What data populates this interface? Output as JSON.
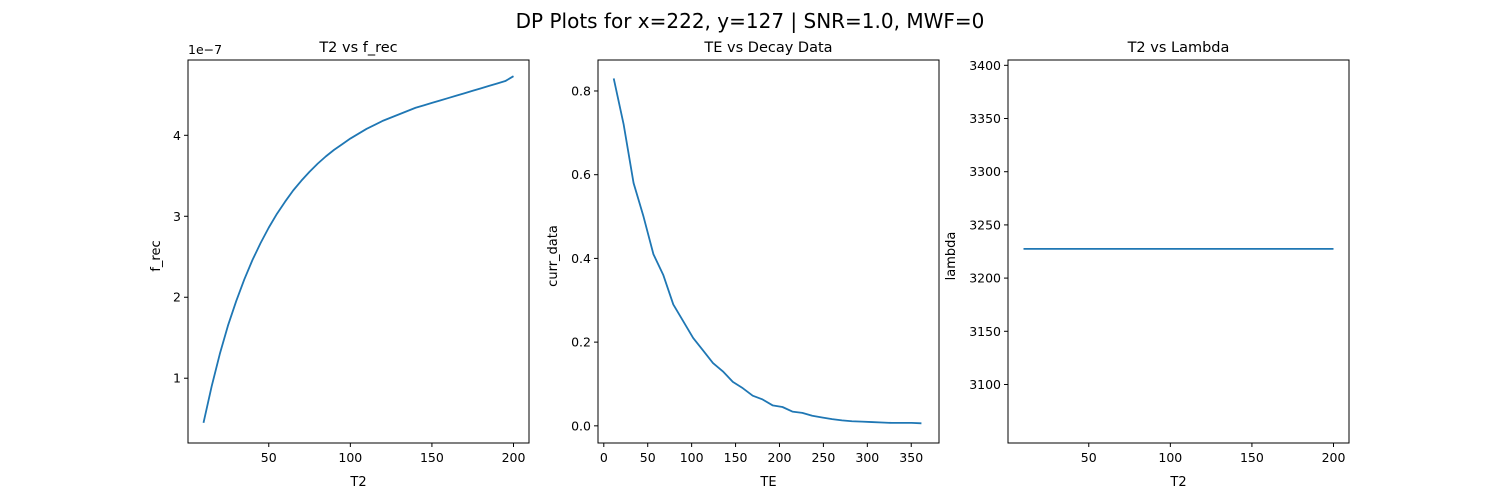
{
  "suptitle": "DP Plots for x=222, y=127 | SNR=1.0, MWF=0",
  "series_color": "#1f77b4",
  "chart_data": [
    {
      "type": "line",
      "title": "T2 vs f_rec",
      "xlabel": "T2",
      "ylabel": "f_rec",
      "y_offset_label": "1e−7",
      "xlim": [
        0.5,
        209.5
      ],
      "ylim": [
        0.2,
        4.93
      ],
      "y_scale_factor": 1e-07,
      "xticks": [
        50,
        100,
        150,
        200
      ],
      "yticks": [
        1,
        2,
        3,
        4
      ],
      "grid": false,
      "x": [
        10,
        15,
        20,
        25,
        30,
        35,
        40,
        45,
        50,
        55,
        60,
        65,
        70,
        75,
        80,
        85,
        90,
        95,
        100,
        105,
        110,
        115,
        120,
        125,
        130,
        135,
        140,
        145,
        150,
        155,
        160,
        165,
        170,
        175,
        180,
        185,
        190,
        195,
        200
      ],
      "y": [
        0.45,
        0.9,
        1.3,
        1.65,
        1.95,
        2.22,
        2.46,
        2.67,
        2.86,
        3.03,
        3.18,
        3.32,
        3.44,
        3.55,
        3.65,
        3.74,
        3.82,
        3.89,
        3.96,
        4.02,
        4.08,
        4.13,
        4.18,
        4.22,
        4.26,
        4.3,
        4.34,
        4.37,
        4.4,
        4.43,
        4.46,
        4.49,
        4.52,
        4.55,
        4.58,
        4.61,
        4.64,
        4.67,
        4.73
      ]
    },
    {
      "type": "line",
      "title": "TE vs Decay Data",
      "xlabel": "TE",
      "ylabel": "curr_data",
      "xlim": [
        -6.6,
        381.6
      ],
      "ylim": [
        -0.041,
        0.874
      ],
      "xticks": [
        0,
        50,
        100,
        150,
        200,
        250,
        300,
        350
      ],
      "yticks": [
        0.0,
        0.2,
        0.4,
        0.6,
        0.8
      ],
      "grid": false,
      "x": [
        11.3,
        22.6,
        33.9,
        45.2,
        56.5,
        67.8,
        79.1,
        90.4,
        101.7,
        113.0,
        124.3,
        135.6,
        146.9,
        158.2,
        169.5,
        180.8,
        192.1,
        203.4,
        214.7,
        226.0,
        237.3,
        248.6,
        259.9,
        271.2,
        282.5,
        293.8,
        305.1,
        316.4,
        327.7,
        339.0,
        350.3,
        361.6
      ],
      "y": [
        0.83,
        0.72,
        0.58,
        0.5,
        0.41,
        0.36,
        0.29,
        0.25,
        0.21,
        0.18,
        0.15,
        0.13,
        0.105,
        0.09,
        0.072,
        0.063,
        0.049,
        0.045,
        0.034,
        0.031,
        0.024,
        0.02,
        0.016,
        0.013,
        0.011,
        0.01,
        0.009,
        0.008,
        0.007,
        0.007,
        0.007,
        0.006
      ]
    },
    {
      "type": "line",
      "title": "T2 vs Lambda",
      "xlabel": "T2",
      "ylabel": "lambda",
      "xlim": [
        0.5,
        209.5
      ],
      "ylim": [
        3045,
        3405
      ],
      "xticks": [
        50,
        100,
        150,
        200
      ],
      "yticks": [
        3100,
        3150,
        3200,
        3250,
        3300,
        3350,
        3400
      ],
      "grid": false,
      "x": [
        10,
        200
      ],
      "y": [
        3227.5,
        3227.5
      ]
    }
  ]
}
